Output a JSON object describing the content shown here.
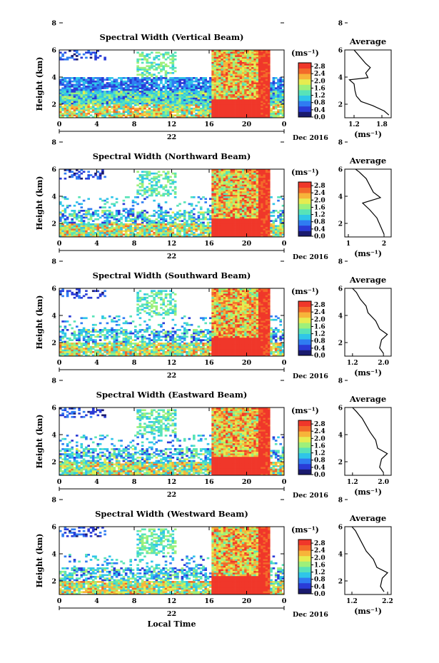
{
  "chart_data": {
    "type": "heatmap",
    "panels": [
      {
        "title": "Spectral Width (Vertical Beam)",
        "avg_title": "Average",
        "avg_xticks": [
          "1.2",
          "1.8"
        ],
        "avg_xlim": [
          1.0,
          2.0
        ],
        "avg_profile": [
          [
            1.95,
            1.2
          ],
          [
            1.85,
            1.5
          ],
          [
            1.6,
            1.9
          ],
          [
            1.35,
            2.2
          ],
          [
            1.25,
            2.6
          ],
          [
            1.22,
            3.0
          ],
          [
            1.2,
            3.5
          ],
          [
            1.1,
            3.8
          ],
          [
            1.5,
            3.95
          ],
          [
            1.45,
            4.3
          ],
          [
            1.55,
            4.7
          ],
          [
            1.45,
            5.0
          ],
          [
            1.35,
            5.4
          ],
          [
            1.25,
            5.8
          ],
          [
            1.2,
            6.0
          ]
        ]
      },
      {
        "title": "Spectral Width (Northward Beam)",
        "avg_title": "Average",
        "avg_xticks": [
          "1",
          "2"
        ],
        "avg_xlim": [
          0.9,
          2.2
        ],
        "avg_profile": [
          [
            2.0,
            1.2
          ],
          [
            1.9,
            1.8
          ],
          [
            1.8,
            2.4
          ],
          [
            1.6,
            3.0
          ],
          [
            1.4,
            3.5
          ],
          [
            1.9,
            3.9
          ],
          [
            1.7,
            4.3
          ],
          [
            1.6,
            4.8
          ],
          [
            1.5,
            5.3
          ],
          [
            1.3,
            5.8
          ],
          [
            1.2,
            6.0
          ]
        ]
      },
      {
        "title": "Spectral Width (Southward Beam)",
        "avg_title": "Average",
        "avg_xticks": [
          "1.2",
          "2.0"
        ],
        "avg_xlim": [
          1.0,
          2.2
        ],
        "avg_profile": [
          [
            2.0,
            1.2
          ],
          [
            1.9,
            1.6
          ],
          [
            1.95,
            2.2
          ],
          [
            2.1,
            2.6
          ],
          [
            1.9,
            3.0
          ],
          [
            1.8,
            3.6
          ],
          [
            1.6,
            4.2
          ],
          [
            1.55,
            4.7
          ],
          [
            1.4,
            5.2
          ],
          [
            1.3,
            5.7
          ],
          [
            1.2,
            6.0
          ]
        ]
      },
      {
        "title": "Spectral Width (Eastward Beam)",
        "avg_title": "Average",
        "avg_xticks": [
          "1.2",
          "2.0"
        ],
        "avg_xlim": [
          1.0,
          2.2
        ],
        "avg_profile": [
          [
            2.0,
            1.2
          ],
          [
            1.9,
            1.6
          ],
          [
            1.95,
            2.2
          ],
          [
            2.1,
            2.6
          ],
          [
            1.85,
            3.0
          ],
          [
            1.8,
            3.6
          ],
          [
            1.65,
            4.2
          ],
          [
            1.55,
            4.7
          ],
          [
            1.45,
            5.2
          ],
          [
            1.3,
            5.7
          ],
          [
            1.2,
            6.0
          ]
        ]
      },
      {
        "title": "Spectral Width (Westward Beam)",
        "avg_title": "Average",
        "avg_xticks": [
          "1.2",
          "2.2"
        ],
        "avg_xlim": [
          1.0,
          2.3
        ],
        "avg_profile": [
          [
            2.1,
            1.2
          ],
          [
            2.0,
            1.6
          ],
          [
            2.05,
            2.2
          ],
          [
            2.2,
            2.6
          ],
          [
            1.9,
            3.0
          ],
          [
            1.8,
            3.6
          ],
          [
            1.6,
            4.2
          ],
          [
            1.5,
            4.7
          ],
          [
            1.4,
            5.2
          ],
          [
            1.3,
            5.7
          ],
          [
            1.2,
            6.0
          ]
        ]
      }
    ],
    "x_ticks": [
      "0",
      "4",
      "8",
      "12",
      "16",
      "20",
      "0"
    ],
    "xlim": [
      0,
      24
    ],
    "date_day": "22",
    "date_label": "Dec 2016",
    "y_ticks": [
      "2",
      "4",
      "6",
      "8"
    ],
    "ylim": [
      1,
      6
    ],
    "ylabel": "Height (km)",
    "xlabel": "Local Time",
    "colorbar": {
      "unit": "(ms⁻¹)",
      "ticks": [
        "2.8",
        "2.4",
        "2.0",
        "1.6",
        "1.2",
        "0.8",
        "0.4",
        "0.0"
      ],
      "vmin": 0.0,
      "vmax": 3.0
    },
    "avg_unit": "(ms⁻¹)"
  },
  "colors": {
    "cmap": [
      "#1a1a6e",
      "#2a3bd6",
      "#2f7cf2",
      "#2fc6e8",
      "#58e3b8",
      "#9ef07a",
      "#e6ec50",
      "#f7b43a",
      "#f36a2a",
      "#f0372a"
    ]
  }
}
